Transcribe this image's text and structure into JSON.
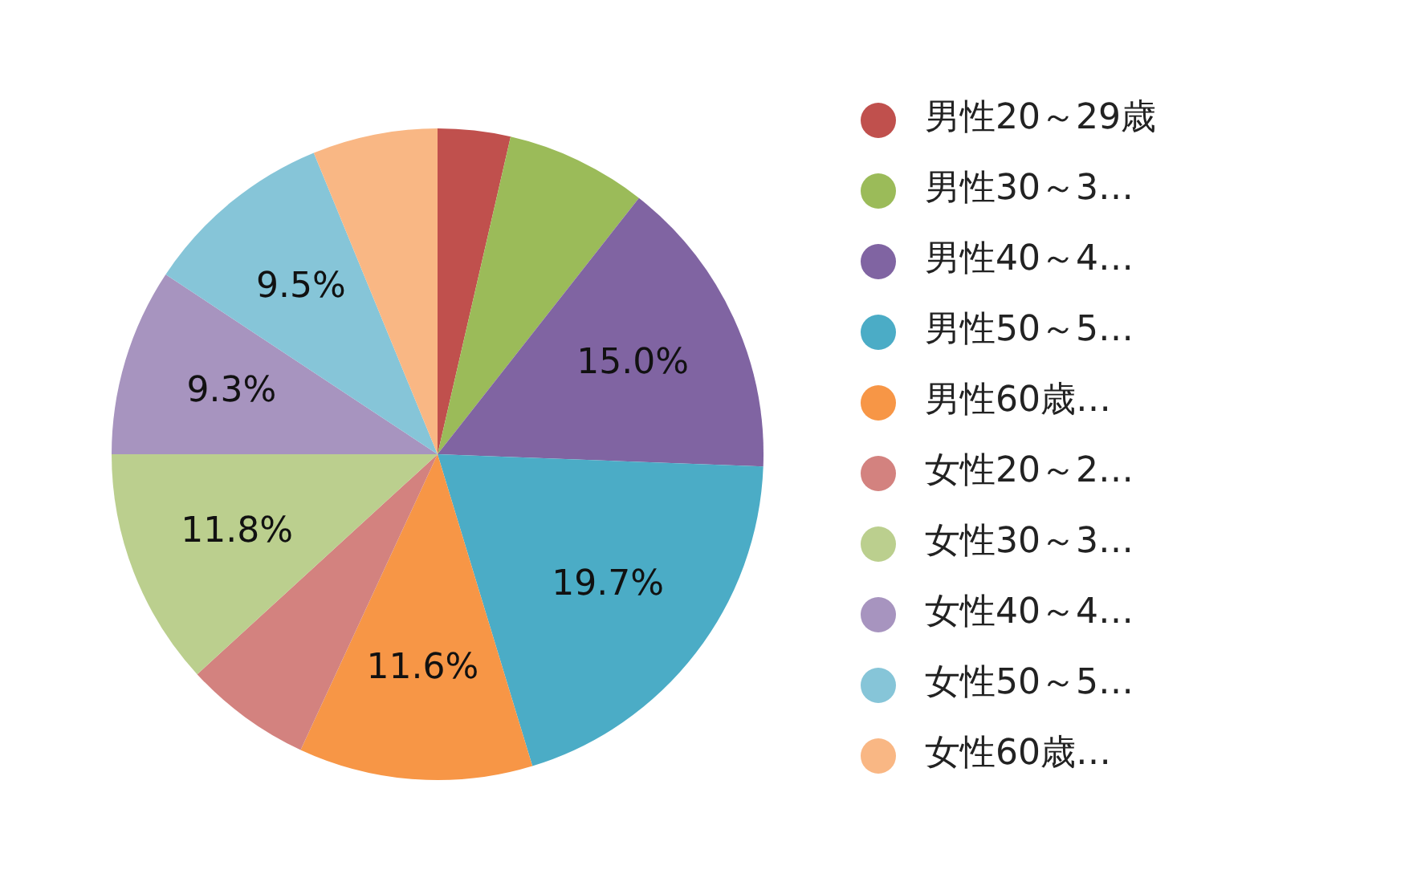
{
  "chart_data": {
    "type": "pie",
    "categories": [
      "男性20～29歳",
      "男性30～3…",
      "男性40～4…",
      "男性50～5…",
      "男性60歳…",
      "女性20～2…",
      "女性30～3…",
      "女性40～4…",
      "女性50～5…",
      "女性60歳…"
    ],
    "values": [
      3.6,
      7.0,
      15.0,
      19.7,
      11.6,
      6.3,
      11.8,
      9.3,
      9.5,
      6.2
    ],
    "colors": [
      "#c0504d",
      "#9bbb59",
      "#8064a2",
      "#4bacc6",
      "#f79646",
      "#d3827f",
      "#bbcf8e",
      "#a794bf",
      "#86c5d8",
      "#f9b784"
    ],
    "value_labels": [
      null,
      null,
      "15.0%",
      "19.7%",
      "11.6%",
      null,
      "11.8%",
      "9.3%",
      "9.5%",
      null
    ],
    "legend": "right"
  }
}
